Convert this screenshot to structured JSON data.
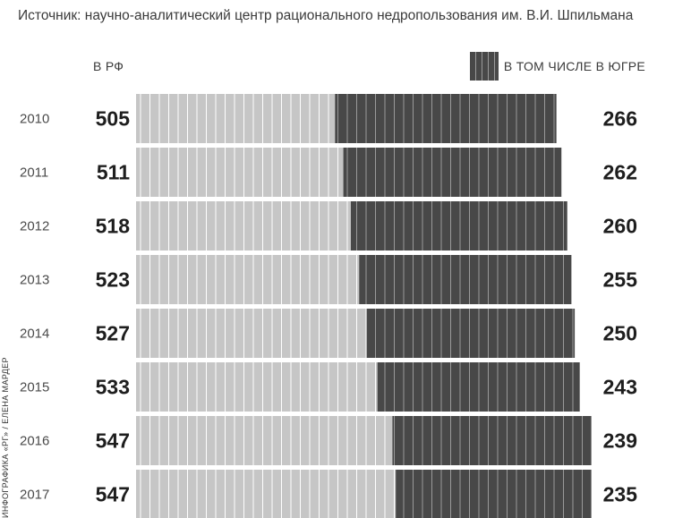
{
  "source": "Источник: научно-аналитический центр рационального недропользования им. В.И. Шпильмана",
  "labels": {
    "rf": "В РФ",
    "legend": "В ТОМ ЧИСЛЕ В ЮГРЕ"
  },
  "credit": "ИНФОГРАФИКА «РГ» / ЕЛЕНА МАРДЕР",
  "colors": {
    "rf_bar": "#c6c6c6",
    "yugra_bar": "#484848",
    "stripe_light": "#ffffff",
    "stripe_dark": "#9a9a9a"
  },
  "chart_data": {
    "type": "bar",
    "orientation": "horizontal",
    "stacked": "overlaid",
    "categories": [
      "2010",
      "2011",
      "2012",
      "2013",
      "2014",
      "2015",
      "2016",
      "2017"
    ],
    "series": [
      {
        "name": "В РФ",
        "values": [
          505,
          511,
          518,
          523,
          527,
          533,
          547,
          547
        ]
      },
      {
        "name": "В ТОМ ЧИСЛЕ В ЮГРЕ",
        "values": [
          266,
          262,
          260,
          255,
          250,
          243,
          239,
          235
        ]
      }
    ]
  }
}
